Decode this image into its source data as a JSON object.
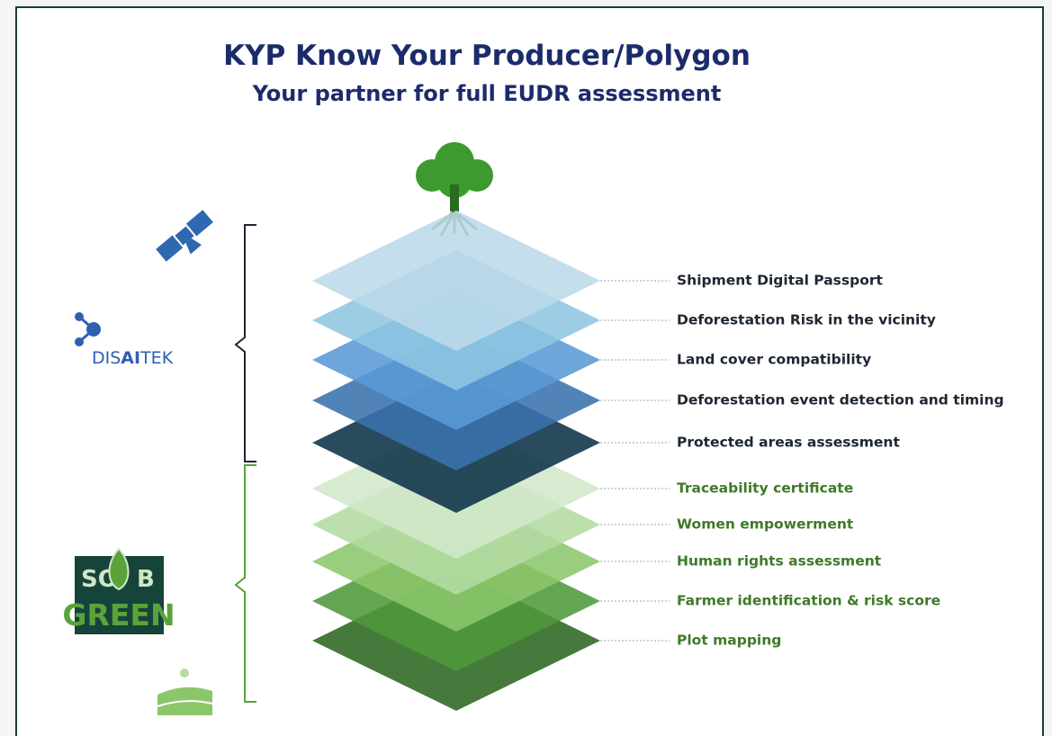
{
  "header": {
    "title": "KYP  Know Your Producer/Polygon",
    "subtitle": "Your partner for full EUDR assessment"
  },
  "logos": {
    "disaitek": [
      "DIS",
      "AI",
      "TEK"
    ],
    "sobgreen": [
      "SO",
      "B",
      "GREEN"
    ]
  },
  "layers": [
    {
      "label": "Shipment Digital Passport",
      "color": "#bcd9e9",
      "text_color": "#1d2733"
    },
    {
      "label": "Deforestation Risk in the vicinity",
      "color": "#8ec6e1",
      "text_color": "#1d2733"
    },
    {
      "label": "Land cover compatibility",
      "color": "#5a9ad6",
      "text_color": "#1d2733"
    },
    {
      "label": "Deforestation event detection and timing",
      "color": "#3a72ad",
      "text_color": "#1d2733"
    },
    {
      "label": "Protected areas assessment",
      "color": "#0d3248",
      "text_color": "#1d2733"
    },
    {
      "label": "Traceability certificate",
      "color": "#d2e8cb",
      "text_color": "#3e7a26"
    },
    {
      "label": "Women empowerment",
      "color": "#b4dba3",
      "text_color": "#3e7a26"
    },
    {
      "label": "Human rights assessment",
      "color": "#8cc66b",
      "text_color": "#3e7a26"
    },
    {
      "label": "Farmer identification & risk score",
      "color": "#4f993b",
      "text_color": "#3e7a26"
    },
    {
      "label": "Plot mapping",
      "color": "#2c6621",
      "text_color": "#3e7a26"
    }
  ]
}
